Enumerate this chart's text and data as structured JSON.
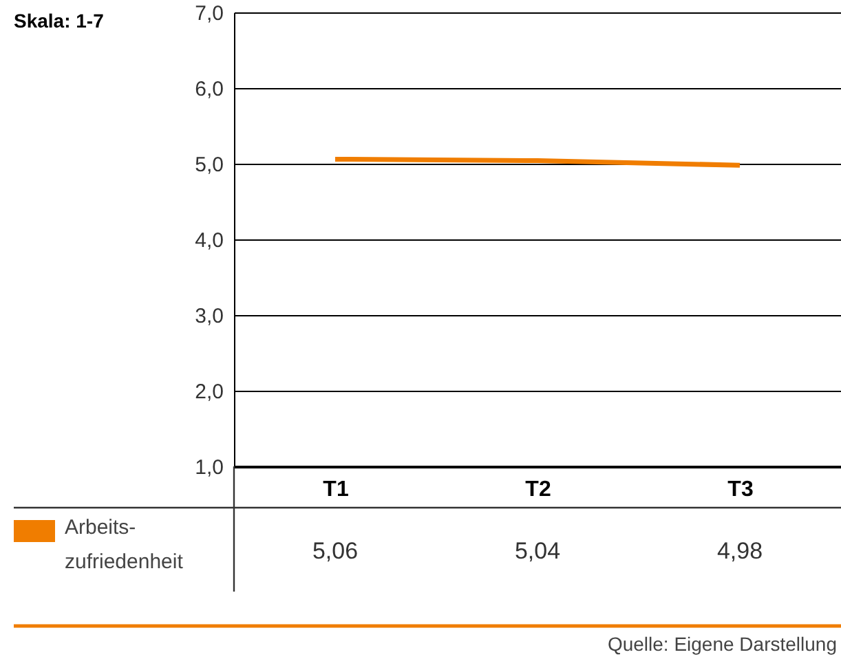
{
  "chart_data": {
    "type": "line",
    "categories": [
      "T1",
      "T2",
      "T3"
    ],
    "series": [
      {
        "name": "Arbeits-zufriedenheit",
        "color": "#f07d00",
        "values": [
          5.06,
          5.04,
          4.98
        ],
        "value_labels": [
          "5,06",
          "5,04",
          "4,98"
        ]
      }
    ],
    "ylim": [
      1,
      7
    ],
    "yticks": [
      {
        "value": 1,
        "label": "1,0"
      },
      {
        "value": 2,
        "label": "2,0"
      },
      {
        "value": 3,
        "label": "3,0"
      },
      {
        "value": 4,
        "label": "4,0"
      },
      {
        "value": 5,
        "label": "5,0"
      },
      {
        "value": 6,
        "label": "6,0"
      },
      {
        "value": 7,
        "label": "7,0"
      }
    ],
    "grid": "y",
    "legend": "bottom left",
    "marker": "none",
    "line_style": "solid",
    "annotations": [
      "Skala: 1-7",
      "Quelle: Eigene Darstellung"
    ]
  }
}
